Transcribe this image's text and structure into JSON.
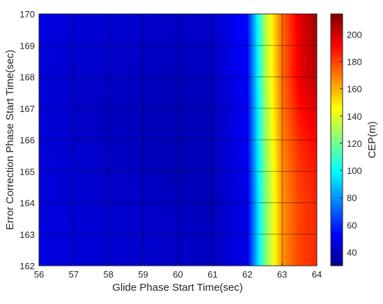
{
  "chart_data": {
    "type": "heatmap",
    "title": "",
    "xlabel": "Glide Phase Start Time(sec)",
    "ylabel": "Error Correction Phase Start Time(sec)",
    "xlim": [
      56,
      64
    ],
    "ylim": [
      162,
      170
    ],
    "x_ticks": [
      "56",
      "57",
      "58",
      "59",
      "60",
      "61",
      "62",
      "63",
      "64"
    ],
    "y_ticks": [
      "162",
      "163",
      "164",
      "165",
      "166",
      "167",
      "168",
      "169",
      "170"
    ],
    "grid": true,
    "colorbar": {
      "label": "CEP(m)",
      "range": [
        30,
        215
      ],
      "ticks": [
        "40",
        "60",
        "80",
        "100",
        "120",
        "140",
        "160",
        "180",
        "200"
      ],
      "colormap": "jet"
    },
    "x": [
      56,
      57,
      58,
      59,
      60,
      61,
      62,
      62.5,
      63,
      63.5,
      64
    ],
    "y": [
      162,
      163,
      164,
      165,
      166,
      167,
      168,
      169,
      170
    ],
    "values": [
      [
        48,
        46,
        45,
        44,
        43,
        42,
        50,
        120,
        165,
        180,
        185
      ],
      [
        48,
        46,
        45,
        44,
        43,
        42,
        50,
        120,
        165,
        180,
        185
      ],
      [
        47,
        45,
        44,
        43,
        42,
        40,
        50,
        120,
        165,
        180,
        186
      ],
      [
        47,
        45,
        43,
        42,
        40,
        41,
        51,
        122,
        166,
        182,
        188
      ],
      [
        46,
        44,
        42,
        41,
        40,
        41,
        52,
        125,
        168,
        185,
        192
      ],
      [
        46,
        44,
        42,
        41,
        40,
        41,
        52,
        126,
        170,
        190,
        198
      ],
      [
        46,
        44,
        43,
        42,
        41,
        42,
        53,
        128,
        172,
        195,
        205
      ],
      [
        47,
        45,
        44,
        43,
        42,
        43,
        54,
        128,
        172,
        195,
        208
      ],
      [
        48,
        46,
        45,
        44,
        43,
        44,
        55,
        130,
        173,
        197,
        210
      ]
    ]
  }
}
